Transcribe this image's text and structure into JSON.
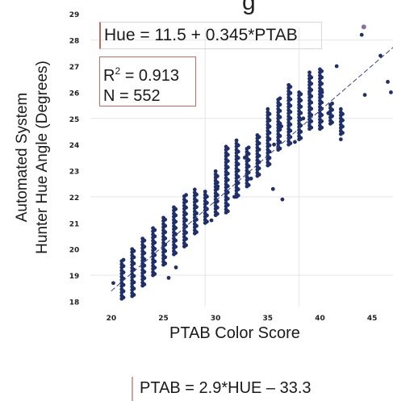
{
  "chart_data": {
    "type": "scatter",
    "title_fragment": "g",
    "xlabel": "PTAB Color Score",
    "ylabel_line1": "Automated System",
    "ylabel_line2": "Hunter Hue Angle (Degrees)",
    "x_ticks": [
      "20",
      "25",
      "30",
      "35",
      "40",
      "45"
    ],
    "y_ticks": [
      "18",
      "19",
      "20",
      "21",
      "22",
      "23",
      "24",
      "25",
      "26",
      "27",
      "28",
      "29"
    ],
    "xlim": [
      18,
      47
    ],
    "ylim": [
      17.8,
      29.1
    ],
    "grid": true,
    "fit_equation": "Hue = 11.5 + 0.345*PTAB",
    "fit": {
      "intercept": 11.5,
      "slope": 0.345
    },
    "r_squared_label": "R",
    "r_squared_sup": "2",
    "r_squared_value": " = 0.913",
    "n_label": "N = 552",
    "inverse_equation": "PTAB = 2.9*HUE – 33.3",
    "columns": [
      {
        "x": 21,
        "y_min": 18.1,
        "y_max": 19.6
      },
      {
        "x": 22,
        "y_min": 18.2,
        "y_max": 20.0
      },
      {
        "x": 23,
        "y_min": 18.6,
        "y_max": 20.4
      },
      {
        "x": 24,
        "y_min": 19.0,
        "y_max": 20.8
      },
      {
        "x": 25,
        "y_min": 19.4,
        "y_max": 21.2
      },
      {
        "x": 26,
        "y_min": 19.8,
        "y_max": 21.6
      },
      {
        "x": 27,
        "y_min": 20.1,
        "y_max": 22.1
      },
      {
        "x": 28,
        "y_min": 20.6,
        "y_max": 22.3
      },
      {
        "x": 29,
        "y_min": 21.0,
        "y_max": 22.2
      },
      {
        "x": 30,
        "y_min": 21.3,
        "y_max": 23.0
      },
      {
        "x": 31,
        "y_min": 21.4,
        "y_max": 24.0
      },
      {
        "x": 32,
        "y_min": 22.0,
        "y_max": 24.2
      },
      {
        "x": 33,
        "y_min": 22.4,
        "y_max": 23.9
      },
      {
        "x": 34,
        "y_min": 22.8,
        "y_max": 24.4
      },
      {
        "x": 35,
        "y_min": 23.2,
        "y_max": 25.4
      },
      {
        "x": 36,
        "y_min": 23.8,
        "y_max": 25.8
      },
      {
        "x": 37,
        "y_min": 24.0,
        "y_max": 26.3
      },
      {
        "x": 38,
        "y_min": 24.2,
        "y_max": 26.0
      },
      {
        "x": 39,
        "y_min": 24.6,
        "y_max": 26.8
      },
      {
        "x": 40,
        "y_min": 24.6,
        "y_max": 26.9
      },
      {
        "x": 41,
        "y_min": 24.8,
        "y_max": 25.6
      },
      {
        "x": 42,
        "y_min": 24.4,
        "y_max": 25.4
      }
    ],
    "scattered_points": [
      {
        "x": 20.2,
        "y": 18.7
      },
      {
        "x": 25.5,
        "y": 18.9
      },
      {
        "x": 26.2,
        "y": 19.3
      },
      {
        "x": 29.6,
        "y": 21.1
      },
      {
        "x": 30.2,
        "y": 22.4
      },
      {
        "x": 31.8,
        "y": 22.0
      },
      {
        "x": 33.4,
        "y": 22.7
      },
      {
        "x": 35.5,
        "y": 22.3
      },
      {
        "x": 36.4,
        "y": 21.9
      },
      {
        "x": 35.6,
        "y": 24.0
      },
      {
        "x": 36.3,
        "y": 24.7
      },
      {
        "x": 38.4,
        "y": 25.0
      },
      {
        "x": 39.0,
        "y": 26.0
      },
      {
        "x": 40.2,
        "y": 26.0
      },
      {
        "x": 41.6,
        "y": 27.0
      },
      {
        "x": 40.8,
        "y": 25.2
      },
      {
        "x": 42.0,
        "y": 24.2
      },
      {
        "x": 44.0,
        "y": 28.2
      },
      {
        "x": 44.3,
        "y": 25.9
      },
      {
        "x": 46.5,
        "y": 26.4
      },
      {
        "x": 46.8,
        "y": 26.0
      },
      {
        "x": 45.8,
        "y": 27.4
      },
      {
        "x": 32.8,
        "y": 23.5
      },
      {
        "x": 37.6,
        "y": 24.1
      }
    ],
    "highlight_point": {
      "x": 44.2,
      "y": 28.5
    },
    "colors": {
      "points": "#1f2f6b",
      "fit_line": "#3a3f8a",
      "grid": "#e6e6e6",
      "highlight": "#8b6fa0"
    }
  }
}
